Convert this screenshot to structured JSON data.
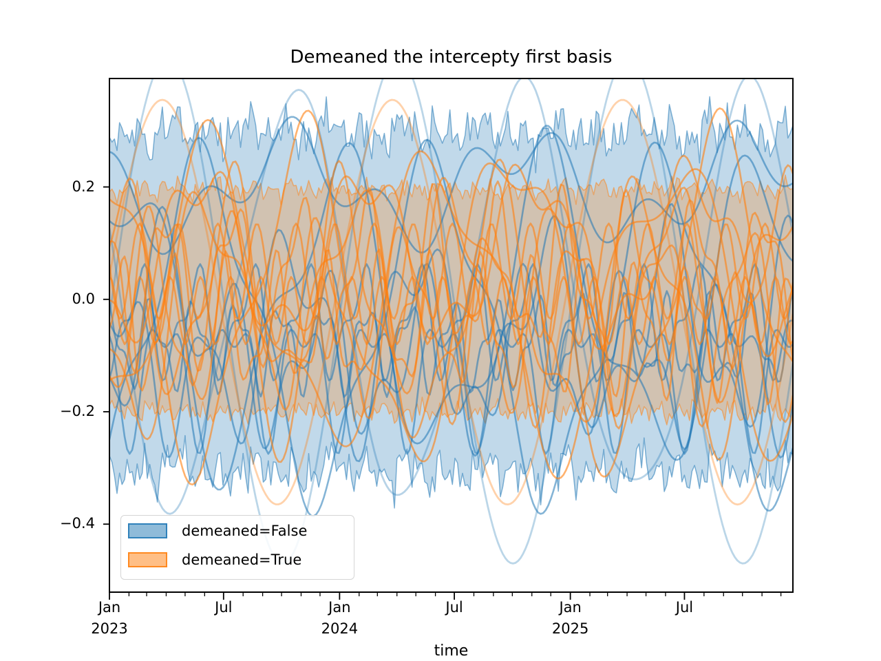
{
  "title": "Demeaned the intercepty first basis",
  "axes": {
    "xlabel": "time"
  },
  "colors": {
    "blue": "#1f77b4",
    "orange": "#ff7f0e",
    "spine": "#000000",
    "legend_border": "#d5d5d5"
  },
  "legend": {
    "items": [
      {
        "label": "demeaned=False",
        "color": "#1f77b4"
      },
      {
        "label": "demeaned=True",
        "color": "#ff7f0e"
      }
    ]
  },
  "chart_data": {
    "type": "line",
    "title": "Demeaned the intercepty first basis",
    "xlabel": "time",
    "ylabel": "",
    "x_start": "2023-01-01",
    "x_span_days": 1084,
    "ylim": [
      -0.521,
      0.393
    ],
    "grid": false,
    "legend_position": "lower left",
    "y_ticks": [
      {
        "value": 0.2,
        "label": "0.2"
      },
      {
        "value": 0.0,
        "label": "0.0"
      },
      {
        "value": -0.2,
        "label": "−0.2"
      },
      {
        "value": -0.4,
        "label": "−0.4"
      }
    ],
    "x_major_ticks": [
      {
        "day": 0,
        "label": "Jan",
        "year": "2023"
      },
      {
        "day": 181,
        "label": "Jul",
        "year": ""
      },
      {
        "day": 365,
        "label": "Jan",
        "year": "2024"
      },
      {
        "day": 547,
        "label": "Jul",
        "year": ""
      },
      {
        "day": 731,
        "label": "Jan",
        "year": "2025"
      },
      {
        "day": 912,
        "label": "Jul",
        "year": ""
      }
    ],
    "x_minor_tick_days": [
      0,
      31,
      59,
      90,
      120,
      151,
      181,
      212,
      243,
      273,
      304,
      334,
      365,
      396,
      425,
      456,
      486,
      517,
      547,
      578,
      609,
      639,
      670,
      700,
      731,
      762,
      790,
      821,
      851,
      882,
      912,
      943,
      974,
      1004,
      1035,
      1065
    ],
    "bands": [
      {
        "name": "demeaned=False",
        "color": "#1f77b4",
        "fill_alpha": 0.28,
        "edge_alpha": 0.55,
        "upper_mean": 0.298,
        "lower_mean": -0.305,
        "noise": {
          "periods": [
            7,
            13,
            29,
            61,
            123
          ],
          "amps": [
            0.013,
            0.016,
            0.018,
            0.013,
            0.01
          ],
          "jitter": 0.012,
          "seed_upper": 101,
          "seed_lower": 202
        }
      },
      {
        "name": "demeaned=True",
        "color": "#ff7f0e",
        "fill_alpha": 0.26,
        "edge_alpha": 0.5,
        "upper_mean": 0.196,
        "lower_mean": -0.2,
        "noise": {
          "periods": [
            7,
            13,
            29,
            61
          ],
          "amps": [
            0.006,
            0.007,
            0.008,
            0.006
          ],
          "jitter": 0.006,
          "seed_upper": 303,
          "seed_lower": 404
        }
      }
    ],
    "series": [
      {
        "group": "demeaned=False",
        "color": "#1f77b4",
        "alpha": 0.3,
        "width": 2.8,
        "offset": -0.02,
        "components": [
          {
            "period": 365,
            "amp": 0.45,
            "phase": -0.02
          }
        ]
      },
      {
        "group": "demeaned=False",
        "color": "#1f77b4",
        "alpha": 0.32,
        "width": 2.8,
        "offset": 0.0,
        "components": [
          {
            "period": 365,
            "amp": 0.36,
            "phase": 2.89
          },
          {
            "period": 170,
            "amp": 0.04,
            "phase": 2.0
          }
        ]
      },
      {
        "group": "demeaned=False",
        "color": "#1f77b4",
        "alpha": 0.55,
        "width": 2.6,
        "offset": 0.2,
        "components": [
          {
            "period": 365,
            "amp": 0.075,
            "phase": 2.9
          },
          {
            "period": 140,
            "amp": 0.05,
            "phase": 1.1
          }
        ]
      },
      {
        "group": "demeaned=False",
        "color": "#1f77b4",
        "alpha": 0.55,
        "width": 2.6,
        "offset": -0.02,
        "components": [
          {
            "period": 340,
            "amp": 0.24,
            "phase": 1.25
          },
          {
            "period": 150,
            "amp": 0.09,
            "phase": 4.0
          }
        ]
      },
      {
        "group": "demeaned=False",
        "color": "#1f77b4",
        "alpha": 0.55,
        "width": 2.6,
        "offset": -0.05,
        "components": [
          {
            "period": 365,
            "amp": 0.28,
            "phase": 5.3
          },
          {
            "period": 120,
            "amp": 0.06,
            "phase": 0.6
          }
        ]
      },
      {
        "group": "demeaned=False",
        "color": "#1f77b4",
        "alpha": 0.55,
        "width": 2.6,
        "offset": -0.06,
        "components": [
          {
            "period": 200,
            "amp": 0.15,
            "phase": 5.0
          },
          {
            "period": 90,
            "amp": 0.08,
            "phase": 2.2
          }
        ]
      },
      {
        "group": "demeaned=False",
        "color": "#1f77b4",
        "alpha": 0.55,
        "width": 2.6,
        "offset": -0.11,
        "components": [
          {
            "period": 160,
            "amp": 0.11,
            "phase": 0.8
          },
          {
            "period": 75,
            "amp": 0.065,
            "phase": 3.3
          }
        ]
      },
      {
        "group": "demeaned=False",
        "color": "#1f77b4",
        "alpha": 0.55,
        "width": 2.6,
        "offset": -0.13,
        "components": [
          {
            "period": 110,
            "amp": 0.095,
            "phase": 2.9
          },
          {
            "period": 55,
            "amp": 0.05,
            "phase": 1.0
          }
        ]
      },
      {
        "group": "demeaned=False",
        "color": "#1f77b4",
        "alpha": 0.55,
        "width": 2.6,
        "offset": -0.04,
        "components": [
          {
            "period": 88,
            "amp": 0.08,
            "phase": 4.4
          },
          {
            "period": 44,
            "amp": 0.04,
            "phase": 5.6
          }
        ]
      },
      {
        "group": "demeaned=False",
        "color": "#1f77b4",
        "alpha": 0.55,
        "width": 2.6,
        "offset": -0.08,
        "components": [
          {
            "period": 68,
            "amp": 0.065,
            "phase": 1.6
          },
          {
            "period": 33,
            "amp": 0.03,
            "phase": 2.8
          }
        ]
      },
      {
        "group": "demeaned=True",
        "color": "#ff7f0e",
        "alpha": 0.35,
        "width": 2.8,
        "offset": -0.005,
        "components": [
          {
            "period": 365,
            "amp": 0.36,
            "phase": 0.13
          }
        ]
      },
      {
        "group": "demeaned=True",
        "color": "#ff7f0e",
        "alpha": 0.6,
        "width": 2.6,
        "offset": 0.0,
        "components": [
          {
            "period": 330,
            "amp": 0.27,
            "phase": 2.0
          },
          {
            "period": 130,
            "amp": 0.07,
            "phase": 5.0
          }
        ]
      },
      {
        "group": "demeaned=True",
        "color": "#ff7f0e",
        "alpha": 0.6,
        "width": 2.6,
        "offset": 0.0,
        "components": [
          {
            "period": 365,
            "amp": 0.24,
            "phase": 5.1
          },
          {
            "period": 160,
            "amp": 0.08,
            "phase": 1.8
          }
        ]
      },
      {
        "group": "demeaned=True",
        "color": "#ff7f0e",
        "alpha": 0.6,
        "width": 2.6,
        "offset": -0.02,
        "components": [
          {
            "period": 230,
            "amp": 0.2,
            "phase": 3.6
          },
          {
            "period": 100,
            "amp": 0.07,
            "phase": 0.3
          }
        ]
      },
      {
        "group": "demeaned=True",
        "color": "#ff7f0e",
        "alpha": 0.6,
        "width": 2.6,
        "offset": 0.02,
        "components": [
          {
            "period": 175,
            "amp": 0.17,
            "phase": 0.9
          },
          {
            "period": 80,
            "amp": 0.06,
            "phase": 4.6
          }
        ]
      },
      {
        "group": "demeaned=True",
        "color": "#ff7f0e",
        "alpha": 0.6,
        "width": 2.6,
        "offset": -0.03,
        "components": [
          {
            "period": 135,
            "amp": 0.15,
            "phase": 4.8
          },
          {
            "period": 65,
            "amp": 0.05,
            "phase": 2.1
          }
        ]
      },
      {
        "group": "demeaned=True",
        "color": "#ff7f0e",
        "alpha": 0.6,
        "width": 2.6,
        "offset": 0.04,
        "components": [
          {
            "period": 105,
            "amp": 0.12,
            "phase": 2.4
          },
          {
            "period": 50,
            "amp": 0.05,
            "phase": 5.9
          }
        ]
      },
      {
        "group": "demeaned=True",
        "color": "#ff7f0e",
        "alpha": 0.6,
        "width": 2.6,
        "offset": -0.05,
        "components": [
          {
            "period": 82,
            "amp": 0.1,
            "phase": 0.2
          },
          {
            "period": 40,
            "amp": 0.04,
            "phase": 3.7
          }
        ]
      },
      {
        "group": "demeaned=True",
        "color": "#ff7f0e",
        "alpha": 0.6,
        "width": 2.6,
        "offset": 0.05,
        "components": [
          {
            "period": 62,
            "amp": 0.085,
            "phase": 3.0
          }
        ]
      },
      {
        "group": "demeaned=True",
        "color": "#ff7f0e",
        "alpha": 0.6,
        "width": 2.6,
        "offset": -0.02,
        "components": [
          {
            "period": 48,
            "amp": 0.06,
            "phase": 1.5
          }
        ]
      },
      {
        "group": "demeaned=True",
        "color": "#ff7f0e",
        "alpha": 0.6,
        "width": 2.6,
        "offset": 0.08,
        "components": [
          {
            "period": 260,
            "amp": 0.14,
            "phase": 4.3
          },
          {
            "period": 90,
            "amp": 0.05,
            "phase": 1.2
          }
        ]
      }
    ]
  }
}
